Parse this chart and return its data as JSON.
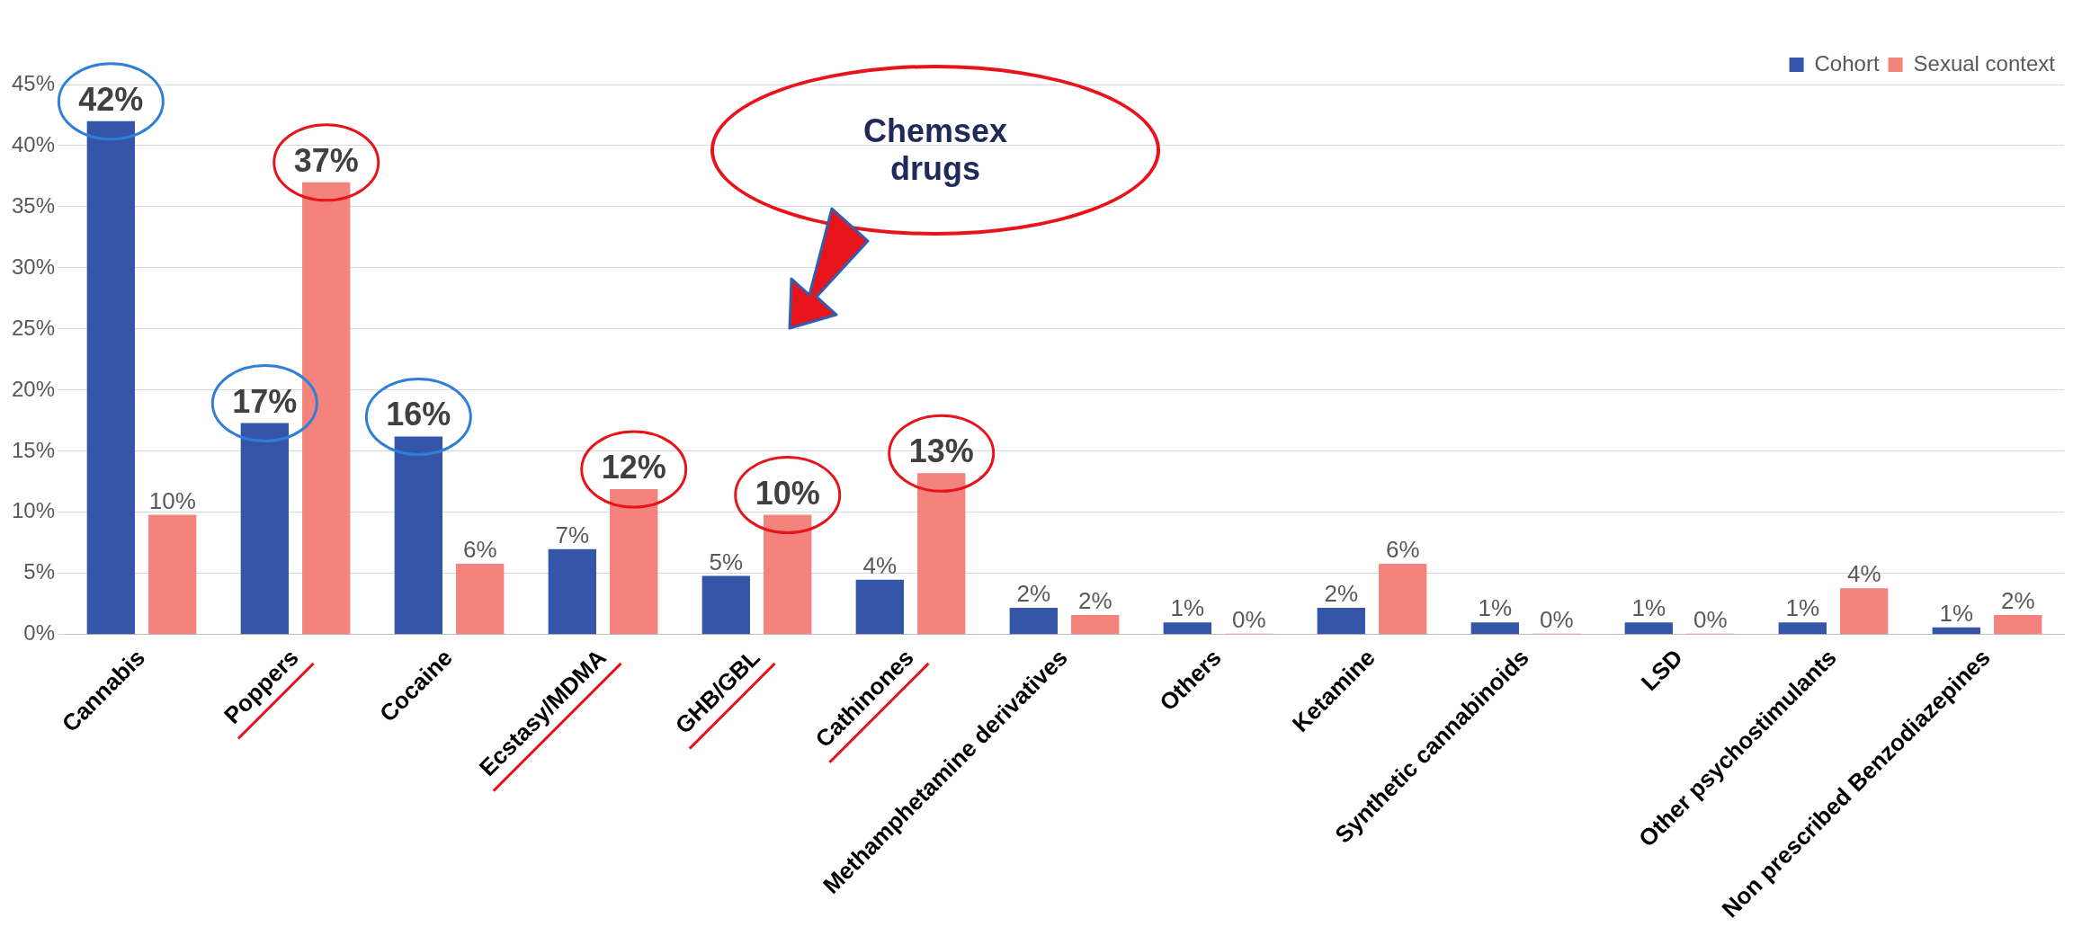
{
  "chart_data": {
    "type": "bar",
    "categories": [
      "Cannabis",
      "Poppers",
      "Cocaine",
      "Ecstasy/MDMA",
      "GHB/GBL",
      "Cathinones",
      "Methamphetamine derivatives",
      "Others",
      "Ketamine",
      "Synthetic cannabinoids",
      "LSD",
      "Other psychostimulants",
      "Non prescribed Benzodiazepines"
    ],
    "series": [
      {
        "name": "Cohort",
        "color": "#3556a8",
        "values": [
          42,
          17.3,
          16.2,
          7,
          4.8,
          4.5,
          2.2,
          1,
          2.2,
          1,
          1,
          1,
          0.6
        ],
        "value_labels": [
          "42%",
          "17%",
          "16%",
          "7%",
          "5%",
          "4%",
          "2%",
          "1%",
          "2%",
          "1%",
          "1%",
          "1%",
          "1%"
        ]
      },
      {
        "name": "Sexual context",
        "color": "#f4837d",
        "values": [
          9.8,
          37,
          5.8,
          11.9,
          9.8,
          13.2,
          1.6,
          0,
          5.8,
          0,
          0,
          3.8,
          1.6
        ],
        "value_labels": [
          "10%",
          "37%",
          "6%",
          "12%",
          "10%",
          "13%",
          "2%",
          "0%",
          "6%",
          "0%",
          "0%",
          "4%",
          "2%"
        ]
      }
    ],
    "ylim": [
      0,
      45
    ],
    "yticks": [
      {
        "value": 0,
        "label": "0%"
      },
      {
        "value": 5,
        "label": "5%"
      },
      {
        "value": 10,
        "label": "10%"
      },
      {
        "value": 15,
        "label": "15%"
      },
      {
        "value": 20,
        "label": "20%"
      },
      {
        "value": 25,
        "label": "25%"
      },
      {
        "value": 30,
        "label": "30%"
      },
      {
        "value": 35,
        "label": "35%"
      },
      {
        "value": 40,
        "label": "40%"
      },
      {
        "value": 45,
        "label": "45%"
      }
    ],
    "grid": "y",
    "legend": "top right",
    "annotations": [
      "Chemsex drugs"
    ]
  }
}
